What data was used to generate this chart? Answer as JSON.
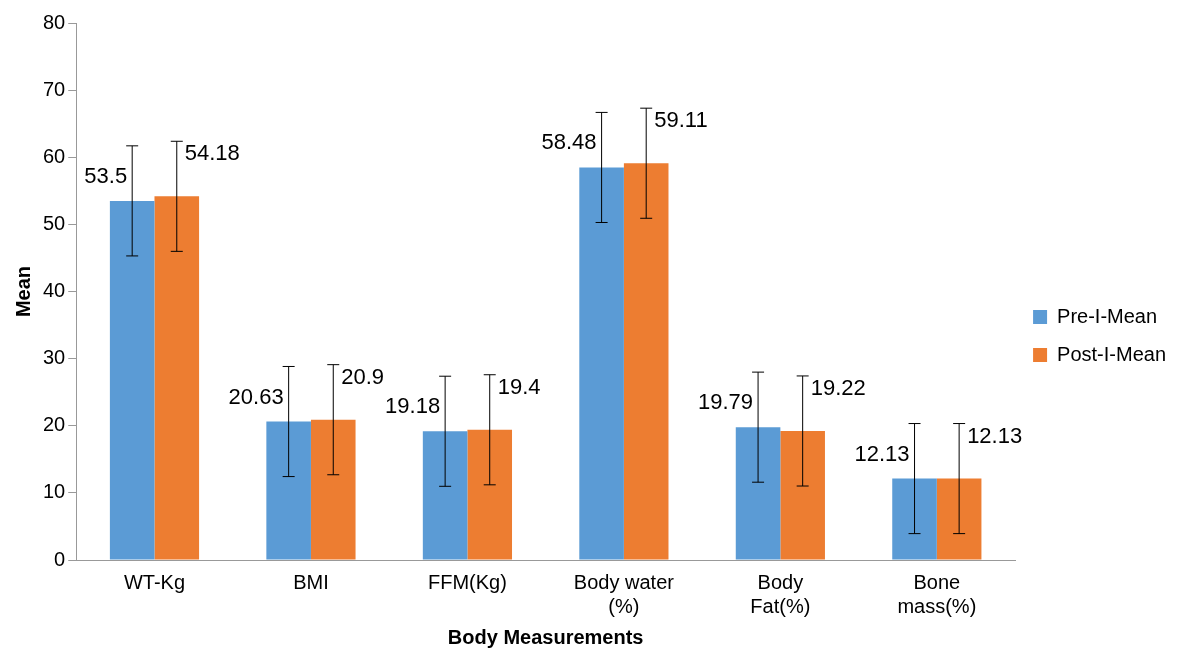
{
  "chart_data": {
    "type": "bar",
    "xlabel": "Body Measurements",
    "ylabel": "Mean",
    "categories": [
      "WT-Kg",
      "BMI",
      "FFM(Kg)",
      "Body water (%)",
      "Body Fat(%)",
      "Bone mass(%)"
    ],
    "series": [
      {
        "name": "Pre-I-Mean",
        "color": "#5b9bd5",
        "values": [
          53.5,
          20.63,
          19.18,
          58.48,
          19.79,
          12.13
        ],
        "errors": [
          8.2,
          8.2,
          8.2,
          8.2,
          8.2,
          8.2
        ]
      },
      {
        "name": "Post-I-Mean",
        "color": "#ed7d31",
        "values": [
          54.18,
          20.9,
          19.4,
          59.11,
          19.22,
          12.13
        ],
        "errors": [
          8.2,
          8.2,
          8.2,
          8.2,
          8.2,
          8.2
        ]
      }
    ],
    "ylim": [
      0,
      80
    ],
    "yticks": [
      0,
      10,
      20,
      30,
      40,
      50,
      60,
      70,
      80
    ],
    "grid": false,
    "legend": "right",
    "data_labels": true
  }
}
